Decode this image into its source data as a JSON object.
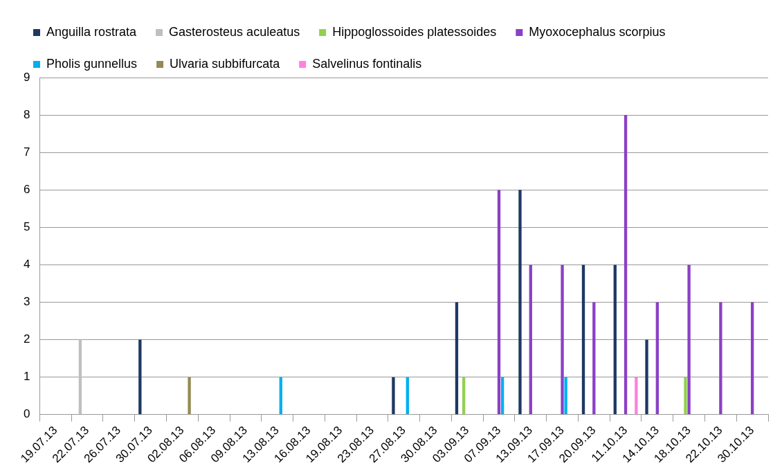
{
  "chart_data": {
    "type": "bar",
    "categories": [
      "19.07.13",
      "22.07.13",
      "26.07.13",
      "30.07.13",
      "02.08.13",
      "06.08.13",
      "09.08.13",
      "13.08.13",
      "16.08.13",
      "19.08.13",
      "23.08.13",
      "27.08.13",
      "30.08.13",
      "03.09.13",
      "07.09.13",
      "13.09.13",
      "17.09.13",
      "20.09.13",
      "11.10.13",
      "14.10.13",
      "18.10.13",
      "22.10.13",
      "30.10.13"
    ],
    "series": [
      {
        "name": "Anguilla rostrata",
        "color": "#1f3864",
        "values": [
          0,
          0,
          0,
          2,
          0,
          0,
          0,
          0,
          0,
          0,
          0,
          1,
          0,
          3,
          0,
          6,
          0,
          4,
          4,
          2,
          0,
          0,
          0
        ]
      },
      {
        "name": "Gasterosteus aculeatus",
        "color": "#bfbfbf",
        "values": [
          0,
          2,
          0,
          0,
          0,
          0,
          0,
          0,
          0,
          0,
          0,
          0,
          0,
          0,
          0,
          0,
          0,
          0,
          0,
          0,
          0,
          0,
          0
        ]
      },
      {
        "name": "Hippoglossoides platessoides",
        "color": "#92d050",
        "values": [
          0,
          0,
          0,
          0,
          0,
          0,
          0,
          0,
          0,
          0,
          0,
          0,
          0,
          1,
          0,
          0,
          0,
          0,
          0,
          0,
          1,
          0,
          0
        ]
      },
      {
        "name": "Myoxocephalus scorpius",
        "color": "#8b40c6",
        "values": [
          0,
          0,
          0,
          0,
          0,
          0,
          0,
          0,
          0,
          0,
          0,
          0,
          0,
          0,
          6,
          4,
          4,
          3,
          8,
          3,
          4,
          3,
          3
        ]
      },
      {
        "name": "Pholis gunnellus",
        "color": "#00b0f0",
        "values": [
          0,
          0,
          0,
          0,
          0,
          0,
          0,
          1,
          0,
          0,
          0,
          1,
          0,
          0,
          1,
          0,
          1,
          0,
          0,
          0,
          0,
          0,
          0
        ]
      },
      {
        "name": "Ulvaria subbifurcata",
        "color": "#948a54",
        "values": [
          0,
          0,
          0,
          0,
          1,
          0,
          0,
          0,
          0,
          0,
          0,
          0,
          0,
          0,
          0,
          0,
          0,
          0,
          0,
          0,
          0,
          0,
          0
        ]
      },
      {
        "name": "Salvelinus fontinalis",
        "color": "#ff80e0",
        "values": [
          0,
          0,
          0,
          0,
          0,
          0,
          0,
          0,
          0,
          0,
          0,
          0,
          0,
          0,
          0,
          0,
          0,
          0,
          1,
          0,
          0,
          0,
          0
        ]
      }
    ],
    "ylim": [
      0,
      9
    ],
    "yticks": [
      0,
      1,
      2,
      3,
      4,
      5,
      6,
      7,
      8,
      9
    ],
    "grid": "y",
    "legend": "top"
  }
}
